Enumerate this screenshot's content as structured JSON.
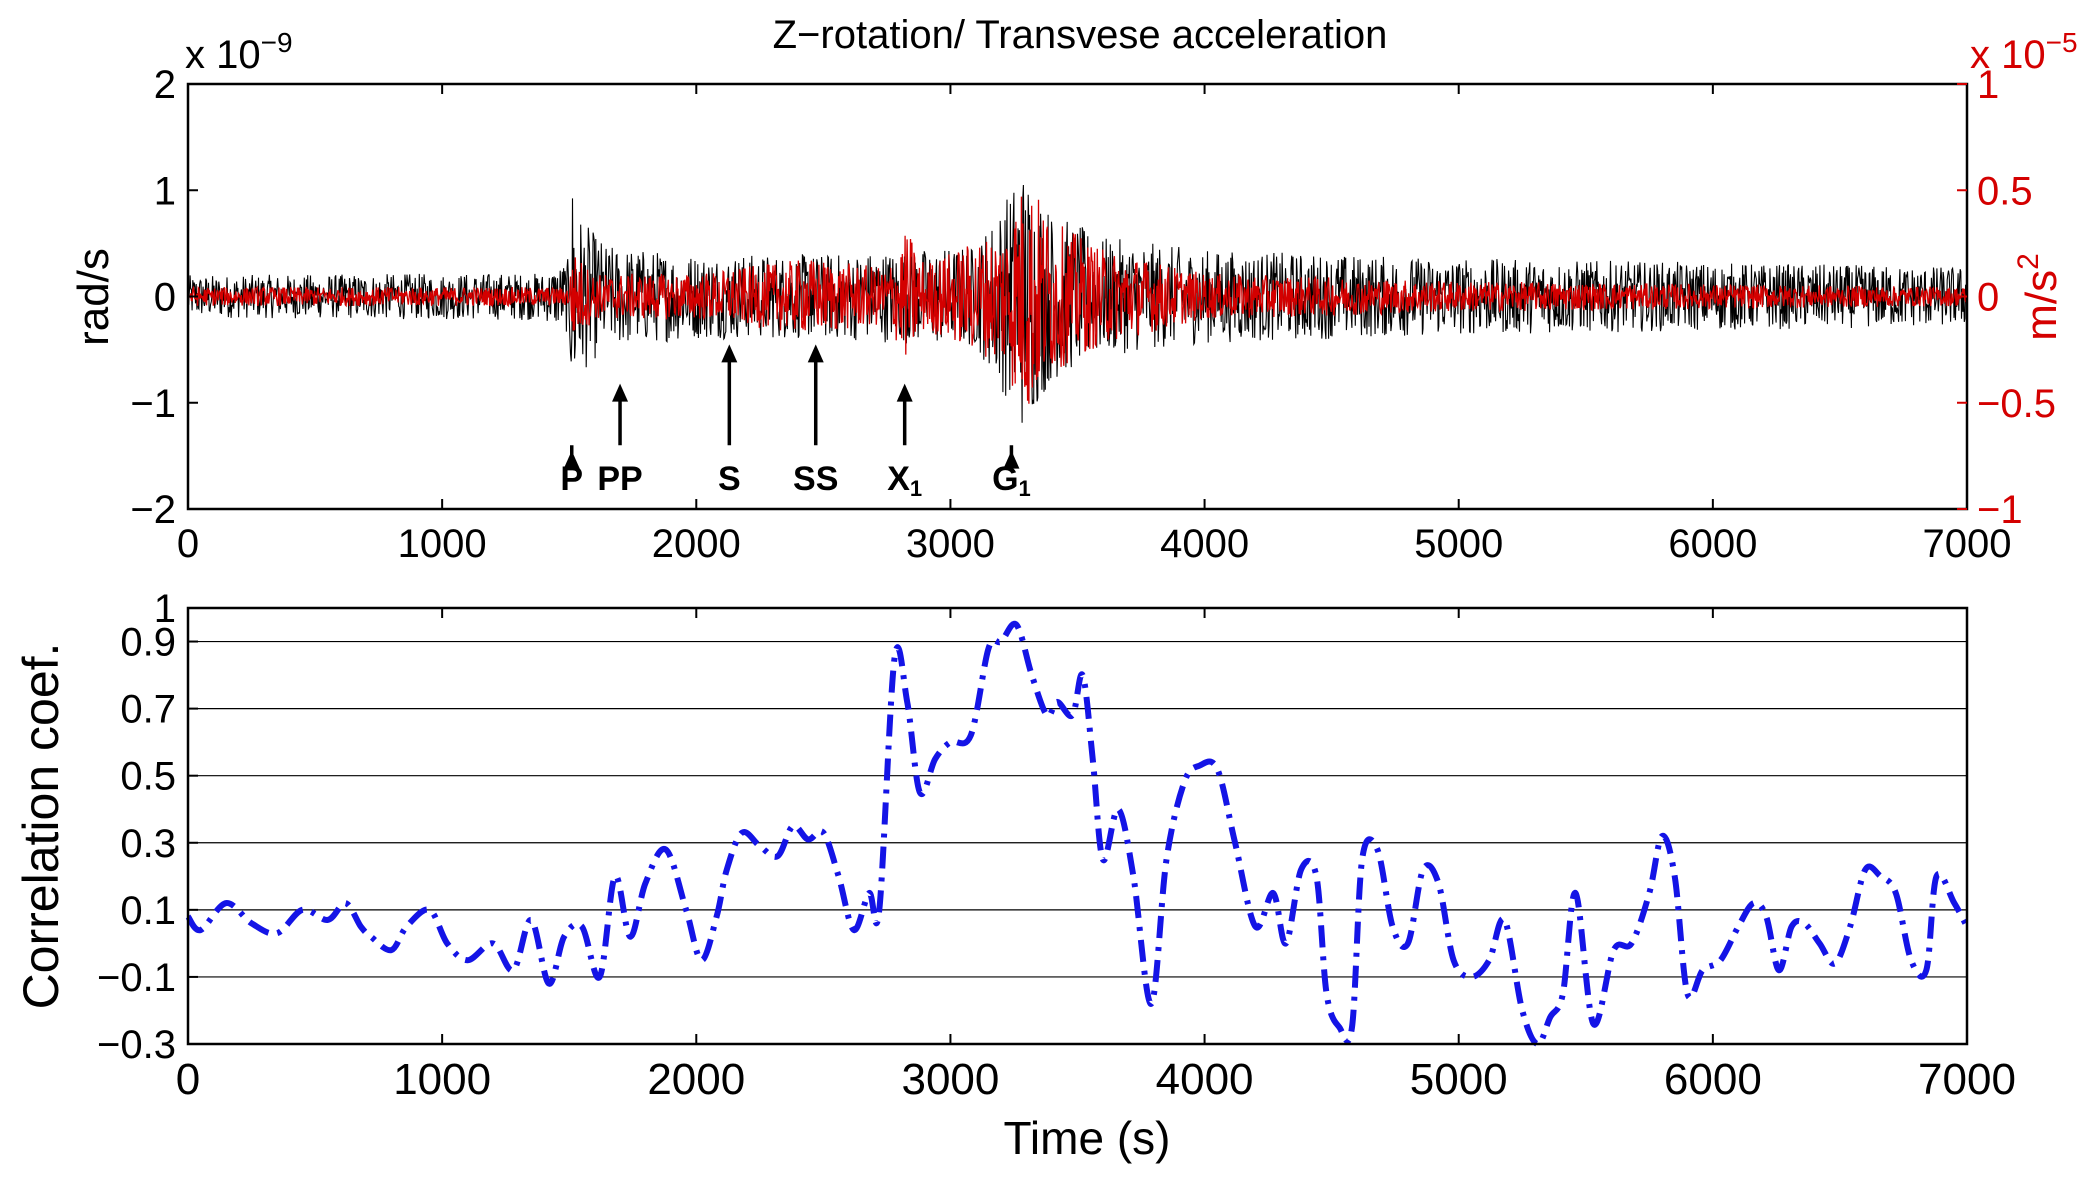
{
  "figure": {
    "title": "Z−rotation/ Transvese acceleration"
  },
  "colors": {
    "rotation": "#000000",
    "acceleration": "#d40000",
    "correlation": "#1414e6",
    "axes": "#000000"
  },
  "chart_data": [
    {
      "type": "line",
      "title": "Z−rotation/ Transvese acceleration",
      "xlabel": "",
      "xlim": [
        0,
        7000
      ],
      "x_ticks": [
        "0",
        "1000",
        "2000",
        "3000",
        "4000",
        "5000",
        "6000",
        "7000"
      ],
      "ylabel_left": "rad/s",
      "ylim_left": [
        -2,
        2
      ],
      "y_left_ticks": [
        "−2",
        "−1",
        "0",
        "1",
        "2"
      ],
      "y_left_exponent": {
        "base": "x 10",
        "power": "−9"
      },
      "ylabel_right": "m/s",
      "ylabel_right_power": "2",
      "ylim_right": [
        -1,
        1
      ],
      "y_right_ticks": [
        "−1",
        "−0.5",
        "0",
        "0.5",
        "1"
      ],
      "y_right_exponent": {
        "base": "x 10",
        "power": "−5"
      },
      "grid": false,
      "series": [
        {
          "key": "rotation",
          "axis": "left",
          "color": "#000000",
          "envelope": [
            [
              0,
              0.25
            ],
            [
              1400,
              0.28
            ],
            [
              1500,
              0.45
            ],
            [
              1510,
              1.5
            ],
            [
              1550,
              0.9
            ],
            [
              1650,
              0.6
            ],
            [
              2000,
              0.5
            ],
            [
              2500,
              0.5
            ],
            [
              2800,
              0.55
            ],
            [
              3100,
              0.6
            ],
            [
              3240,
              1.3
            ],
            [
              3280,
              1.6
            ],
            [
              3400,
              1.0
            ],
            [
              3600,
              0.7
            ],
            [
              4000,
              0.55
            ],
            [
              5000,
              0.45
            ],
            [
              7000,
              0.35
            ]
          ]
        },
        {
          "key": "acceleration",
          "axis": "right",
          "color": "#d40000",
          "envelope": [
            [
              0,
              0.05
            ],
            [
              1500,
              0.05
            ],
            [
              1510,
              0.25
            ],
            [
              1600,
              0.12
            ],
            [
              2000,
              0.12
            ],
            [
              2450,
              0.2
            ],
            [
              2750,
              0.15
            ],
            [
              2830,
              0.35
            ],
            [
              2900,
              0.18
            ],
            [
              3200,
              0.35
            ],
            [
              3300,
              0.65
            ],
            [
              3400,
              0.4
            ],
            [
              3600,
              0.25
            ],
            [
              4000,
              0.12
            ],
            [
              5000,
              0.08
            ],
            [
              7000,
              0.05
            ]
          ]
        }
      ],
      "annotations": [
        {
          "label": "P",
          "sub": "",
          "x": 1510,
          "tip": -1.45
        },
        {
          "label": "PP",
          "sub": "",
          "x": 1700,
          "tip": -0.82
        },
        {
          "label": "S",
          "sub": "",
          "x": 2130,
          "tip": -0.45
        },
        {
          "label": "SS",
          "sub": "",
          "x": 2470,
          "tip": -0.45
        },
        {
          "label": "X",
          "sub": "1",
          "x": 2820,
          "tip": -0.82
        },
        {
          "label": "G",
          "sub": "1",
          "x": 3240,
          "tip": -1.45
        }
      ]
    },
    {
      "type": "line",
      "title": "",
      "xlabel": "Time (s)",
      "ylabel": "Correlation coef.",
      "xlim": [
        0,
        7000
      ],
      "ylim": [
        -0.3,
        1
      ],
      "x_ticks": [
        "0",
        "1000",
        "2000",
        "3000",
        "4000",
        "5000",
        "6000",
        "7000"
      ],
      "y_ticks": [
        "−0.3",
        "−0.1",
        "0.1",
        "0.3",
        "0.5",
        "0.7",
        "0.9",
        "1"
      ],
      "y_tick_values": [
        -0.3,
        -0.1,
        0.1,
        0.3,
        0.5,
        0.7,
        0.9,
        1
      ],
      "grid": "y-major",
      "series": [
        {
          "key": "correlation",
          "color": "#1414e6",
          "style": "dash-dot",
          "x": [
            0,
            50,
            150,
            250,
            350,
            450,
            550,
            620,
            680,
            720,
            800,
            860,
            950,
            1020,
            1100,
            1200,
            1280,
            1350,
            1420,
            1480,
            1550,
            1620,
            1680,
            1740,
            1800,
            1880,
            1960,
            2020,
            2080,
            2120,
            2180,
            2250,
            2320,
            2380,
            2440,
            2500,
            2560,
            2620,
            2680,
            2720,
            2780,
            2830,
            2880,
            2940,
            3000,
            3080,
            3150,
            3200,
            3260,
            3320,
            3380,
            3420,
            3480,
            3520,
            3560,
            3600,
            3660,
            3720,
            3790,
            3850,
            3920,
            3980,
            4050,
            4120,
            4200,
            4270,
            4320,
            4380,
            4440,
            4480,
            4530,
            4580,
            4620,
            4680,
            4740,
            4800,
            4860,
            4920,
            4980,
            5050,
            5120,
            5180,
            5250,
            5310,
            5360,
            5410,
            5460,
            5530,
            5610,
            5680,
            5750,
            5800,
            5850,
            5900,
            5960,
            6030,
            6100,
            6160,
            6210,
            6260,
            6310,
            6360,
            6420,
            6480,
            6540,
            6600,
            6660,
            6720,
            6780,
            6840,
            6880,
            6950,
            7000
          ],
          "y": [
            0.08,
            0.04,
            0.12,
            0.06,
            0.03,
            0.1,
            0.07,
            0.12,
            0.05,
            0.02,
            -0.02,
            0.05,
            0.1,
            0.0,
            -0.05,
            0.0,
            -0.08,
            0.07,
            -0.12,
            0.02,
            0.05,
            -0.1,
            0.2,
            0.02,
            0.18,
            0.28,
            0.1,
            -0.05,
            0.08,
            0.22,
            0.33,
            0.29,
            0.26,
            0.35,
            0.31,
            0.33,
            0.2,
            0.04,
            0.15,
            0.1,
            0.85,
            0.72,
            0.45,
            0.55,
            0.6,
            0.62,
            0.88,
            0.9,
            0.95,
            0.8,
            0.68,
            0.72,
            0.68,
            0.8,
            0.55,
            0.25,
            0.4,
            0.2,
            -0.18,
            0.25,
            0.48,
            0.53,
            0.52,
            0.3,
            0.05,
            0.15,
            0.0,
            0.22,
            0.2,
            -0.15,
            -0.25,
            -0.25,
            0.25,
            0.28,
            0.05,
            0.0,
            0.22,
            0.18,
            -0.05,
            -0.1,
            -0.05,
            0.07,
            -0.2,
            -0.3,
            -0.22,
            -0.15,
            0.15,
            -0.24,
            -0.02,
            0.0,
            0.15,
            0.32,
            0.2,
            -0.15,
            -0.08,
            -0.05,
            0.05,
            0.12,
            0.08,
            -0.08,
            0.05,
            0.06,
            0.0,
            -0.06,
            0.05,
            0.22,
            0.2,
            0.15,
            -0.05,
            -0.08,
            0.2,
            0.12,
            0.05
          ]
        }
      ]
    }
  ]
}
